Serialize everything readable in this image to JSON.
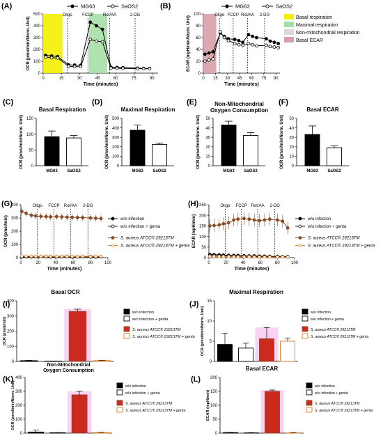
{
  "colors": {
    "black": "#000000",
    "red": "#cc2a1e",
    "brown": "#8a4a24",
    "orange": "#e07a20",
    "yellow": "#f5f000",
    "green": "#a6dfa6",
    "gray": "#d9d9d9",
    "rose": "#d7a0a8",
    "pink": "#f8c8ee"
  },
  "chart_data": [
    {
      "id": "A",
      "type": "line",
      "panel": "(A)",
      "xlabel": "Time (minutes)",
      "ylabel": "OCR (pmol/min/Norm. Unit)",
      "xlim": [
        0,
        95
      ],
      "ylim": [
        0,
        500
      ],
      "xticks": [
        0,
        15,
        30,
        45,
        60,
        75,
        90
      ],
      "yticks": [
        0,
        100,
        200,
        300,
        400,
        500
      ],
      "injections": [
        {
          "x": 20,
          "label": "Oligo"
        },
        {
          "x": 37,
          "label": "FCCP"
        },
        {
          "x": 55,
          "label": "Rot/AA"
        },
        {
          "x": 76,
          "label": "2-DG"
        }
      ],
      "bands": [
        {
          "from": 0,
          "to": 16,
          "color": "yellow"
        },
        {
          "from": 38,
          "to": 53,
          "color": "green"
        }
      ],
      "legend": [
        "MG63",
        "SaOS2"
      ],
      "series": [
        {
          "name": "MG63",
          "style": "filled",
          "x": [
            2,
            7,
            12,
            21,
            26,
            31,
            39,
            44,
            49,
            56,
            61,
            66,
            78,
            83,
            88
          ],
          "y": [
            150,
            145,
            140,
            70,
            68,
            67,
            430,
            400,
            370,
            50,
            48,
            47,
            42,
            40,
            40
          ]
        },
        {
          "name": "SaOS2",
          "style": "open",
          "x": [
            2,
            7,
            12,
            21,
            26,
            31,
            39,
            44,
            49,
            56,
            61,
            66,
            78,
            83,
            88
          ],
          "y": [
            135,
            130,
            128,
            58,
            55,
            55,
            285,
            270,
            265,
            42,
            40,
            40,
            38,
            37,
            37
          ]
        }
      ]
    },
    {
      "id": "B",
      "type": "line",
      "panel": "(B)",
      "xlabel": "Time (minutes)",
      "ylabel": "ECAR (mpH/min/Norm. Unit)",
      "xlim": [
        0,
        95
      ],
      "ylim": [
        0,
        100
      ],
      "xticks": [
        0,
        15,
        30,
        45,
        60,
        75,
        90
      ],
      "yticks": [
        0,
        20,
        40,
        60,
        80,
        100
      ],
      "injections": [
        {
          "x": 20,
          "label": "Oligo"
        },
        {
          "x": 37,
          "label": "FCCP"
        },
        {
          "x": 55,
          "label": "Rot/AA"
        },
        {
          "x": 76,
          "label": "2-DG"
        }
      ],
      "bands": [
        {
          "from": 0,
          "to": 16,
          "color": "rose"
        }
      ],
      "legend": [
        "MG63",
        "SaOS2"
      ],
      "series": [
        {
          "name": "MG63",
          "style": "filled",
          "x": [
            2,
            7,
            12,
            21,
            26,
            31,
            39,
            44,
            49,
            56,
            61,
            66,
            78,
            83,
            88,
            93
          ],
          "y": [
            32,
            34,
            36,
            68,
            62,
            58,
            57,
            55,
            52,
            65,
            62,
            60,
            58,
            54,
            52,
            50
          ]
        },
        {
          "name": "SaOS2",
          "style": "open",
          "x": [
            2,
            7,
            12,
            21,
            26,
            31,
            39,
            44,
            49,
            56,
            61,
            66,
            78,
            83,
            88,
            93
          ],
          "y": [
            20,
            22,
            24,
            70,
            60,
            55,
            50,
            48,
            47,
            50,
            48,
            46,
            47,
            45,
            44,
            43
          ]
        }
      ]
    },
    {
      "id": "C",
      "type": "bar",
      "panel": "(C)",
      "title": "Basal Respiration",
      "ylabel": "OCR (pmol/min/Norm. Unit)",
      "categories": [
        "MG63",
        "SaOS2"
      ],
      "values": [
        92,
        88
      ],
      "errors": [
        18,
        8
      ],
      "fills": [
        "black",
        "white"
      ],
      "ylim": [
        0,
        150
      ],
      "yticks": [
        0,
        50,
        100,
        150
      ]
    },
    {
      "id": "D",
      "type": "bar",
      "panel": "(D)",
      "title": "Maximal Respiration",
      "ylabel": "OCR (pmol/min/Norm. Unit)",
      "categories": [
        "MG63",
        "SaOS2"
      ],
      "values": [
        375,
        225
      ],
      "errors": [
        55,
        15
      ],
      "fills": [
        "black",
        "white"
      ],
      "ylim": [
        0,
        500
      ],
      "yticks": [
        0,
        100,
        200,
        300,
        400,
        500
      ]
    },
    {
      "id": "E",
      "type": "bar",
      "panel": "(E)",
      "title": "Non-Mitochondrial Oxygen Consumption",
      "ylabel": "OCR (pmol/min/Norm. Unit)",
      "categories": [
        "MG63",
        "SaOS2"
      ],
      "values": [
        43,
        32
      ],
      "errors": [
        4,
        3
      ],
      "fills": [
        "black",
        "white"
      ],
      "ylim": [
        0,
        50
      ],
      "yticks": [
        0,
        10,
        20,
        30,
        40,
        50
      ]
    },
    {
      "id": "F",
      "type": "bar",
      "panel": "(F)",
      "title": "Basal ECAR",
      "ylabel": "OCR (pmol/min/Norm. Unit)",
      "categories": [
        "MG63",
        "SaOS2"
      ],
      "values": [
        33,
        19
      ],
      "errors": [
        9,
        2
      ],
      "fills": [
        "black",
        "white"
      ],
      "ylim": [
        0,
        50
      ],
      "yticks": [
        0,
        10,
        20,
        30,
        40,
        50
      ]
    },
    {
      "id": "G",
      "type": "line",
      "panel": "(G)",
      "xlabel": "Time (minutes)",
      "ylabel": "OCR (pmol/min)",
      "xlim": [
        0,
        100
      ],
      "ylim": [
        0,
        400
      ],
      "xticks": [
        0,
        20,
        40,
        60,
        80,
        100
      ],
      "yticks": [
        0,
        100,
        200,
        300,
        400
      ],
      "injections": [
        {
          "x": 19,
          "label": "Oligo"
        },
        {
          "x": 38,
          "label": "FCCP"
        },
        {
          "x": 57,
          "label": "Rot/AA"
        },
        {
          "x": 77,
          "label": "2-DG"
        }
      ],
      "bands": [],
      "series": [
        {
          "name": "w/o infection",
          "style": "filled",
          "err": 10,
          "x": [
            1,
            6,
            12,
            17,
            23,
            29,
            34,
            41,
            47,
            53,
            59,
            65,
            71,
            80,
            86,
            92
          ],
          "y": [
            8,
            9,
            8,
            7,
            9,
            10,
            9,
            8,
            9,
            10,
            9,
            8,
            9,
            10,
            9,
            8
          ]
        },
        {
          "name": "w/o infection + genta",
          "style": "open",
          "err": 10,
          "x": [
            1,
            6,
            12,
            17,
            23,
            29,
            34,
            41,
            47,
            53,
            59,
            65,
            71,
            80,
            86,
            92
          ],
          "y": [
            5,
            6,
            5,
            6,
            7,
            6,
            5,
            6,
            7,
            6,
            5,
            6,
            7,
            6,
            5,
            6
          ]
        },
        {
          "name": "S. aureus ATCC® 29213TM",
          "style": "brown",
          "err": 25,
          "x": [
            1,
            6,
            12,
            17,
            23,
            29,
            34,
            41,
            47,
            53,
            59,
            65,
            71,
            80,
            86,
            92
          ],
          "y": [
            350,
            335,
            320,
            315,
            312,
            310,
            308,
            310,
            308,
            306,
            305,
            303,
            302,
            300,
            298,
            296
          ]
        },
        {
          "name": "S. aureus ATCC® 29213TM + genta",
          "style": "openorange",
          "err": 10,
          "x": [
            1,
            6,
            12,
            17,
            23,
            29,
            34,
            41,
            47,
            53,
            59,
            65,
            71,
            80,
            86,
            92
          ],
          "y": [
            12,
            11,
            10,
            10,
            9,
            10,
            9,
            9,
            10,
            9,
            10,
            9,
            10,
            9,
            10,
            9
          ]
        }
      ]
    },
    {
      "id": "H",
      "type": "line",
      "panel": "(H)",
      "xlabel": "Time (minutes)",
      "ylabel": "ECAR (mpH/min)",
      "xlim": [
        0,
        100
      ],
      "ylim": [
        0,
        250
      ],
      "xticks": [
        0,
        20,
        40,
        60,
        80,
        100
      ],
      "yticks": [
        0,
        50,
        100,
        150,
        200,
        250
      ],
      "injections": [
        {
          "x": 19,
          "label": "Oligo"
        },
        {
          "x": 38,
          "label": "FCCP"
        },
        {
          "x": 57,
          "label": "Rot/AA"
        },
        {
          "x": 77,
          "label": "2-DG"
        }
      ],
      "bands": [],
      "series": [
        {
          "name": "w/o infection",
          "style": "filled",
          "err": 5,
          "x": [
            1,
            6,
            12,
            17,
            23,
            29,
            34,
            41,
            47,
            53,
            59,
            65,
            71,
            80,
            86,
            92
          ],
          "y": [
            15,
            14,
            13,
            12,
            11,
            10,
            10,
            9,
            8,
            8,
            7,
            7,
            6,
            6,
            5,
            5
          ]
        },
        {
          "name": "w/o infection + genta",
          "style": "open",
          "err": 5,
          "x": [
            1,
            6,
            12,
            17,
            23,
            29,
            34,
            41,
            47,
            53,
            59,
            65,
            71,
            80,
            86,
            92
          ],
          "y": [
            10,
            9,
            8,
            8,
            7,
            7,
            6,
            6,
            6,
            5,
            5,
            5,
            4,
            4,
            4,
            3
          ]
        },
        {
          "name": "S. aureus ATCC® 29213TM",
          "style": "brown",
          "err": 30,
          "x": [
            1,
            6,
            12,
            17,
            23,
            29,
            34,
            41,
            47,
            53,
            59,
            65,
            71,
            80,
            86,
            92
          ],
          "y": [
            150,
            152,
            155,
            160,
            165,
            178,
            182,
            185,
            182,
            178,
            175,
            178,
            182,
            178,
            172,
            140
          ]
        },
        {
          "name": "S. aureus ATCC® 29213TM + genta",
          "style": "openorange",
          "err": 5,
          "x": [
            1,
            6,
            12,
            17,
            23,
            29,
            34,
            41,
            47,
            53,
            59,
            65,
            71,
            80,
            86,
            92
          ],
          "y": [
            6,
            6,
            5,
            5,
            5,
            4,
            4,
            4,
            4,
            3,
            3,
            3,
            3,
            3,
            3,
            3
          ]
        }
      ]
    },
    {
      "id": "I",
      "type": "bar",
      "panel": "(I)",
      "title": "Basal OCR",
      "ylabel": "OCR (pmol/min)",
      "categories": [
        "w/o infection",
        "w/o infection + genta",
        "S. aureus ATCC® 29213TM",
        "S. aureus ATCC® 29213TM + genta"
      ],
      "values": [
        5,
        2,
        330,
        6
      ],
      "errors": [
        2,
        1,
        15,
        2
      ],
      "ylim": [
        0,
        400
      ],
      "yticks": [
        0,
        100,
        200,
        300,
        400
      ],
      "highlight": 2
    },
    {
      "id": "J",
      "type": "bar",
      "panel": "(J)",
      "title": "Maximal Respiration",
      "ylabel": "OCR (pmol/min/Norm. Unit)",
      "categories": [
        "w/o infection",
        "w/o infection + genta",
        "S. aureus ATCC® 29213TM",
        "S. aureus ATCC® 29213TM + genta"
      ],
      "values": [
        4.2,
        3.3,
        5.6,
        5.0
      ],
      "errors": [
        2.8,
        1.2,
        2.8,
        0.8
      ],
      "ylim": [
        0,
        15
      ],
      "yticks": [
        0,
        5,
        10,
        15
      ],
      "highlight": 2
    },
    {
      "id": "K",
      "type": "bar",
      "panel": "(K)",
      "title": "Non-Mitochondrial Oxygen Consumption",
      "ylabel": "OCR (pmol/min/Norm. Unit)",
      "categories": [
        "w/o infection",
        "w/o infection + genta",
        "S. aureus ATCC® 29213TM",
        "S. aureus ATCC® 29213TM + genta"
      ],
      "values": [
        8,
        3,
        275,
        4
      ],
      "errors": [
        14,
        1,
        25,
        2
      ],
      "ylim": [
        0,
        400
      ],
      "yticks": [
        0,
        100,
        200,
        300,
        400
      ],
      "highlight": 2
    },
    {
      "id": "L",
      "type": "bar",
      "panel": "(L)",
      "title": "Basal ECAR",
      "ylabel": "ECAR (mpH/min)",
      "categories": [
        "w/o infection",
        "w/o infection + genta",
        "S. aureus ATCC® 29213TM",
        "S. aureus ATCC® 29213TM + genta"
      ],
      "values": [
        2,
        1,
        150,
        1
      ],
      "errors": [
        1,
        1,
        5,
        1
      ],
      "ylim": [
        0,
        200
      ],
      "yticks": [
        0,
        50,
        100,
        150,
        200
      ],
      "highlight": 2
    }
  ],
  "legends": {
    "B": [
      {
        "label": "Basal respiration",
        "color": "yellow"
      },
      {
        "label": "Maximal respiration",
        "color": "green"
      },
      {
        "label": "Non-mitochondrial respiration",
        "color": "gray"
      },
      {
        "label": "Basal ECAR",
        "color": "rose"
      }
    ],
    "G": [
      "w/o infection",
      "w/o infection + genta",
      "S. aureus ATCC® 29213TM",
      "S. aureus ATCC® 29213TM + genta"
    ],
    "H": [
      "w/o infection",
      "w/o infection + genta",
      "S. aureus ATCC® 29213TM",
      "S. aureus ATCC® 29213TM + genta"
    ],
    "I": [
      "w/o infection",
      "w/o infection + genta",
      "S. aureus ATCC® 29213TM",
      "S. aureus ATCC® 29213TM + genta"
    ],
    "J": [
      "w/o infection",
      "w/o infection + genta",
      "S. aureus ATCC® 29213TM",
      "S. aureus ATCC® 29213TM + genta"
    ],
    "K": [
      "w/o infection",
      "w/o infection + genta",
      "S. aureus ATCC® 29213TM",
      "S. aureus ATCC® 29213TM + genta"
    ],
    "L": [
      "w/o infection",
      "w/o infection + genta",
      "S. aureus ATCC® 29213TM",
      "S. aureus ATCC® 29213TM + genta"
    ]
  }
}
